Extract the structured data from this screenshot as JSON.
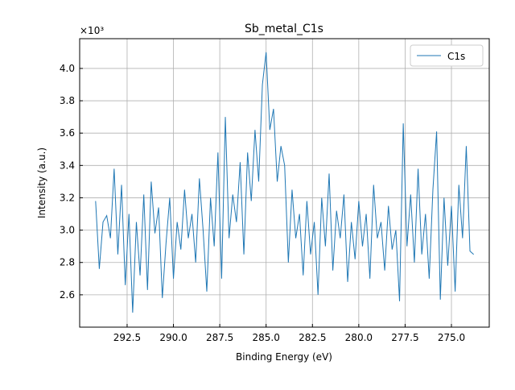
{
  "chart_data": {
    "type": "line",
    "title": "Sb_metal_C1s",
    "x_label": "Binding Energy (eV)",
    "y_label": "Intensity (a.u.)",
    "y_offset_label": "×10³",
    "xlim": [
      295.06,
      272.96
    ],
    "ylim": [
      2.4,
      4.184
    ],
    "xticks": [
      292.5,
      {
        "value": 290,
        "label": "290.0"
      },
      287.5,
      {
        "value": 285,
        "label": "285.0"
      },
      282.5,
      {
        "value": 280,
        "label": "280.0"
      },
      277.5,
      {
        "value": 275,
        "label": "275.0"
      }
    ],
    "yticks": [
      2.6,
      2.8,
      {
        "value": 3,
        "label": "3.0"
      },
      3.2,
      3.4,
      3.6,
      3.8,
      {
        "value": 4,
        "label": "4.0"
      }
    ],
    "grid": true,
    "legend": "upper right",
    "x": [
      294.2,
      294.0,
      293.8,
      293.6,
      293.4,
      293.2,
      293.0,
      292.8,
      292.6,
      292.4,
      292.2,
      292.0,
      291.8,
      291.6,
      291.4,
      291.2,
      291.0,
      290.8,
      290.6,
      290.4,
      290.2,
      290.0,
      289.8,
      289.6,
      289.4,
      289.2,
      289.0,
      288.8,
      288.6,
      288.4,
      288.2,
      288.0,
      287.8,
      287.6,
      287.4,
      287.2,
      287.0,
      286.8,
      286.6,
      286.4,
      286.2,
      286.0,
      285.8,
      285.6,
      285.4,
      285.2,
      285.0,
      284.8,
      284.6,
      284.4,
      284.2,
      284.0,
      283.8,
      283.6,
      283.4,
      283.2,
      283.0,
      282.8,
      282.6,
      282.4,
      282.2,
      282.0,
      281.8,
      281.6,
      281.4,
      281.2,
      281.0,
      280.8,
      280.6,
      280.4,
      280.2,
      280.0,
      279.8,
      279.6,
      279.4,
      279.2,
      279.0,
      278.8,
      278.6,
      278.4,
      278.2,
      278.0,
      277.8,
      277.6,
      277.4,
      277.2,
      277.0,
      276.8,
      276.6,
      276.4,
      276.2,
      276.0,
      275.8,
      275.6,
      275.4,
      275.2,
      275.0,
      274.8,
      274.6,
      274.4,
      274.2,
      274.0,
      273.8
    ],
    "series": [
      {
        "name": "C1s",
        "color": "#1f77b4",
        "values": [
          3.18,
          2.76,
          3.05,
          3.09,
          2.95,
          3.38,
          2.85,
          3.28,
          2.66,
          3.1,
          2.49,
          3.05,
          2.72,
          3.22,
          2.63,
          3.3,
          2.98,
          3.14,
          2.58,
          2.92,
          3.2,
          2.7,
          3.05,
          2.88,
          3.25,
          2.95,
          3.1,
          2.8,
          3.32,
          3.0,
          2.62,
          3.2,
          2.9,
          3.48,
          2.7,
          3.7,
          2.95,
          3.22,
          3.05,
          3.42,
          2.85,
          3.48,
          3.18,
          3.62,
          3.3,
          3.9,
          4.1,
          3.62,
          3.75,
          3.3,
          3.52,
          3.4,
          2.8,
          3.25,
          2.95,
          3.1,
          2.72,
          3.18,
          2.85,
          3.05,
          2.6,
          3.2,
          2.9,
          3.35,
          2.75,
          3.12,
          2.95,
          3.22,
          2.68,
          3.05,
          2.82,
          3.18,
          2.9,
          3.1,
          2.7,
          3.28,
          2.95,
          3.05,
          2.75,
          3.15,
          2.88,
          3.0,
          2.56,
          3.66,
          2.9,
          3.22,
          2.8,
          3.38,
          2.85,
          3.1,
          2.7,
          3.25,
          3.61,
          2.57,
          3.2,
          2.78,
          3.15,
          2.62,
          3.28,
          2.95,
          3.52,
          2.87,
          2.85
        ]
      }
    ]
  }
}
